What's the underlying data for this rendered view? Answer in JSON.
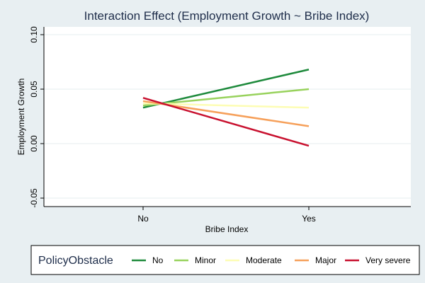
{
  "chart_data": {
    "type": "line",
    "title": "Interaction Effect (Employment Growth ~ Bribe Index)",
    "xlabel": "Bribe Index",
    "ylabel": "Employment Growth",
    "categories": [
      "No",
      "Yes"
    ],
    "ylim": [
      -0.05,
      0.1
    ],
    "yticks": [
      "-0.05",
      "0.00",
      "0.05",
      "0.10"
    ],
    "grid": true,
    "legend": {
      "title": "PolicyObstacle",
      "position": "bottom"
    },
    "series": [
      {
        "name": "No",
        "color": "#1e8a3c",
        "values": [
          0.033,
          0.068
        ]
      },
      {
        "name": "Minor",
        "color": "#98d25c",
        "values": [
          0.035,
          0.05
        ]
      },
      {
        "name": "Moderate",
        "color": "#fdfdb4",
        "values": [
          0.037,
          0.033
        ]
      },
      {
        "name": "Major",
        "color": "#f6a05a",
        "values": [
          0.039,
          0.016
        ]
      },
      {
        "name": "Very severe",
        "color": "#c8102e",
        "values": [
          0.042,
          -0.002
        ]
      }
    ]
  }
}
